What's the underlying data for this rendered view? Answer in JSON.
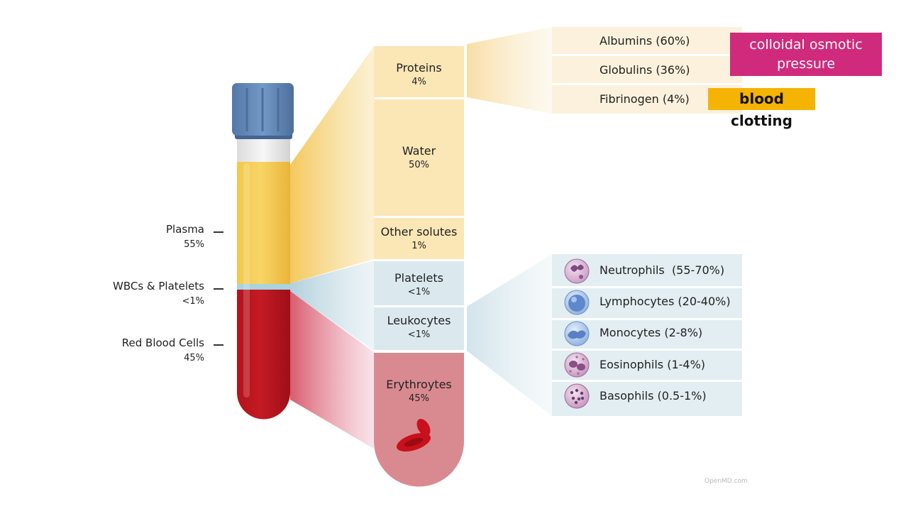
{
  "tube_labels": [
    {
      "name": "Plasma",
      "pct": "55%"
    },
    {
      "name": "WBCs & Platelets",
      "pct": "<1%"
    },
    {
      "name": "Red Blood Cells",
      "pct": "45%"
    }
  ],
  "column": {
    "proteins": {
      "name": "Proteins",
      "pct": "4%"
    },
    "water": {
      "name": "Water",
      "pct": "50%"
    },
    "other_solutes": {
      "name": "Other solutes",
      "pct": "1%"
    },
    "platelets": {
      "name": "Platelets",
      "pct": "<1%"
    },
    "leukocytes": {
      "name": "Leukocytes",
      "pct": "<1%"
    },
    "erythrocytes": {
      "name": "Erythroytes",
      "pct": "45%"
    }
  },
  "protein_rows": [
    "Albumins (60%)",
    "Globulins (36%)",
    "Fibrinogen (4%)"
  ],
  "wbc_rows": [
    {
      "label": "Neutrophils  (55-70%)",
      "icon": "neutrophil-icon"
    },
    {
      "label": "Lymphocytes (20-40%)",
      "icon": "lymphocyte-icon"
    },
    {
      "label": "Monocytes (2-8%)",
      "icon": "monocyte-icon"
    },
    {
      "label": "Eosinophils (1-4%)",
      "icon": "eosinophil-icon"
    },
    {
      "label": "Basophils (0.5-1%)",
      "icon": "basophil-icon"
    }
  ],
  "annotations": {
    "osmotic": "colloidal osmotic pressure",
    "clotting": "blood clotting"
  },
  "credit": "OpenMD.com",
  "colors": {
    "plasma": "#f3c84c",
    "blood": "#b5121b",
    "cap": "#5f87b8",
    "osmotic_tag": "#d02a7c",
    "clotting_tag": "#f5b304"
  }
}
